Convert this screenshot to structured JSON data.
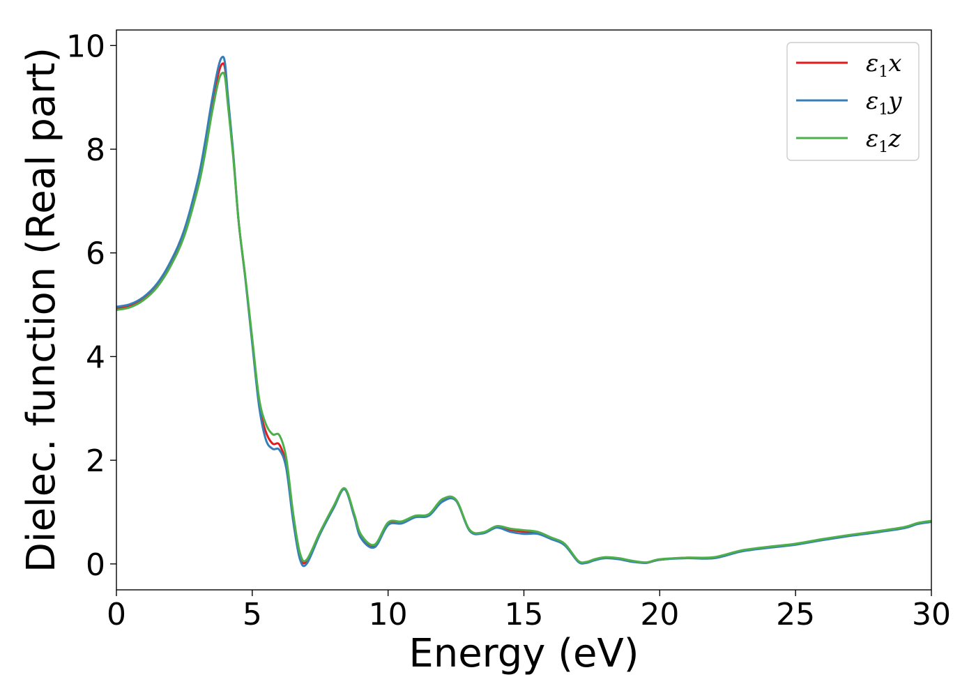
{
  "chart_data": {
    "type": "line",
    "title": "",
    "xlabel": "Energy (eV)",
    "ylabel": "Dielec. function (Real part)",
    "xlim": [
      0,
      30
    ],
    "ylim": [
      -0.5,
      10.3
    ],
    "xticks": [
      0,
      5,
      10,
      15,
      20,
      25,
      30
    ],
    "yticks": [
      0,
      2,
      4,
      6,
      8,
      10
    ],
    "xtick_labels": [
      "0",
      "5",
      "10",
      "15",
      "20",
      "25",
      "30"
    ],
    "ytick_labels": [
      "0",
      "2",
      "4",
      "6",
      "8",
      "10"
    ],
    "grid": false,
    "legend_position": "top-right",
    "series": [
      {
        "name": "ε1x",
        "legend": {
          "base": "ε",
          "sub": "1",
          "suffix": "x"
        },
        "color": "#e41a1c",
        "x": [
          0,
          0.5,
          1,
          1.5,
          2,
          2.5,
          3,
          3.25,
          3.5,
          3.75,
          3.9,
          4.0,
          4.1,
          4.3,
          4.5,
          4.75,
          5.0,
          5.25,
          5.5,
          5.75,
          6.0,
          6.25,
          6.5,
          6.75,
          7.0,
          7.5,
          8.0,
          8.4,
          8.75,
          9.0,
          9.5,
          10.0,
          10.5,
          11.0,
          11.5,
          12.0,
          12.5,
          13.0,
          13.5,
          14.0,
          14.5,
          15.0,
          15.5,
          16.0,
          16.5,
          17.0,
          17.3,
          17.6,
          18.0,
          18.5,
          19.0,
          19.5,
          20.0,
          21.0,
          22.0,
          23.0,
          24.0,
          25.0,
          26.0,
          27.0,
          28.0,
          29.0,
          29.5,
          30.0
        ],
        "y": [
          4.93,
          4.98,
          5.12,
          5.38,
          5.8,
          6.4,
          7.35,
          8.0,
          8.8,
          9.45,
          9.65,
          9.55,
          9.0,
          7.9,
          6.6,
          5.5,
          4.3,
          3.1,
          2.55,
          2.32,
          2.3,
          1.9,
          0.9,
          0.15,
          0.05,
          0.6,
          1.1,
          1.45,
          0.95,
          0.55,
          0.35,
          0.78,
          0.8,
          0.92,
          0.95,
          1.22,
          1.23,
          0.65,
          0.6,
          0.72,
          0.66,
          0.62,
          0.6,
          0.5,
          0.38,
          0.05,
          0.03,
          0.08,
          0.12,
          0.1,
          0.05,
          0.02,
          0.08,
          0.12,
          0.12,
          0.25,
          0.32,
          0.38,
          0.47,
          0.55,
          0.62,
          0.7,
          0.78,
          0.82
        ]
      },
      {
        "name": "ε1y",
        "legend": {
          "base": "ε",
          "sub": "1",
          "suffix": "y"
        },
        "color": "#377eb8",
        "x": [
          0,
          0.5,
          1,
          1.5,
          2,
          2.5,
          3,
          3.25,
          3.5,
          3.75,
          3.9,
          4.0,
          4.1,
          4.3,
          4.5,
          4.75,
          5.0,
          5.25,
          5.5,
          5.75,
          6.0,
          6.25,
          6.5,
          6.75,
          7.0,
          7.5,
          8.0,
          8.4,
          8.75,
          9.0,
          9.5,
          10.0,
          10.5,
          11.0,
          11.5,
          12.0,
          12.5,
          13.0,
          13.5,
          14.0,
          14.5,
          15.0,
          15.5,
          16.0,
          16.5,
          17.0,
          17.3,
          17.6,
          18.0,
          18.5,
          19.0,
          19.5,
          20.0,
          21.0,
          22.0,
          23.0,
          24.0,
          25.0,
          26.0,
          27.0,
          28.0,
          29.0,
          29.5,
          30.0
        ],
        "y": [
          4.96,
          5.01,
          5.15,
          5.41,
          5.84,
          6.45,
          7.42,
          8.1,
          8.9,
          9.58,
          9.78,
          9.65,
          9.05,
          7.92,
          6.6,
          5.48,
          4.25,
          3.05,
          2.4,
          2.22,
          2.2,
          1.85,
          0.85,
          0.1,
          0.0,
          0.58,
          1.08,
          1.44,
          0.92,
          0.5,
          0.32,
          0.75,
          0.78,
          0.9,
          0.93,
          1.2,
          1.22,
          0.64,
          0.59,
          0.7,
          0.62,
          0.58,
          0.58,
          0.48,
          0.36,
          0.04,
          0.02,
          0.07,
          0.11,
          0.09,
          0.04,
          0.02,
          0.08,
          0.11,
          0.11,
          0.24,
          0.31,
          0.37,
          0.46,
          0.54,
          0.61,
          0.69,
          0.77,
          0.81
        ]
      },
      {
        "name": "ε1z",
        "legend": {
          "base": "ε",
          "sub": "1",
          "suffix": "z"
        },
        "color": "#4daf4a",
        "x": [
          0,
          0.5,
          1,
          1.5,
          2,
          2.5,
          3,
          3.25,
          3.5,
          3.75,
          3.9,
          4.0,
          4.1,
          4.3,
          4.5,
          4.75,
          5.0,
          5.25,
          5.5,
          5.75,
          6.0,
          6.25,
          6.5,
          6.75,
          7.0,
          7.5,
          8.0,
          8.4,
          8.75,
          9.0,
          9.5,
          10.0,
          10.5,
          11.0,
          11.5,
          12.0,
          12.5,
          13.0,
          13.5,
          14.0,
          14.5,
          15.0,
          15.5,
          16.0,
          16.5,
          17.0,
          17.3,
          17.6,
          18.0,
          18.5,
          19.0,
          19.5,
          20.0,
          21.0,
          22.0,
          23.0,
          24.0,
          25.0,
          26.0,
          27.0,
          28.0,
          29.0,
          29.5,
          30.0
        ],
        "y": [
          4.9,
          4.95,
          5.09,
          5.34,
          5.75,
          6.33,
          7.25,
          7.88,
          8.65,
          9.3,
          9.47,
          9.38,
          8.88,
          7.84,
          6.6,
          5.52,
          4.35,
          3.2,
          2.7,
          2.5,
          2.48,
          2.05,
          1.0,
          0.22,
          0.08,
          0.62,
          1.12,
          1.46,
          0.97,
          0.57,
          0.37,
          0.8,
          0.82,
          0.93,
          0.96,
          1.25,
          1.24,
          0.66,
          0.61,
          0.73,
          0.68,
          0.65,
          0.62,
          0.51,
          0.39,
          0.06,
          0.04,
          0.09,
          0.13,
          0.11,
          0.06,
          0.03,
          0.09,
          0.12,
          0.13,
          0.26,
          0.33,
          0.39,
          0.48,
          0.56,
          0.63,
          0.71,
          0.79,
          0.83
        ]
      }
    ]
  }
}
